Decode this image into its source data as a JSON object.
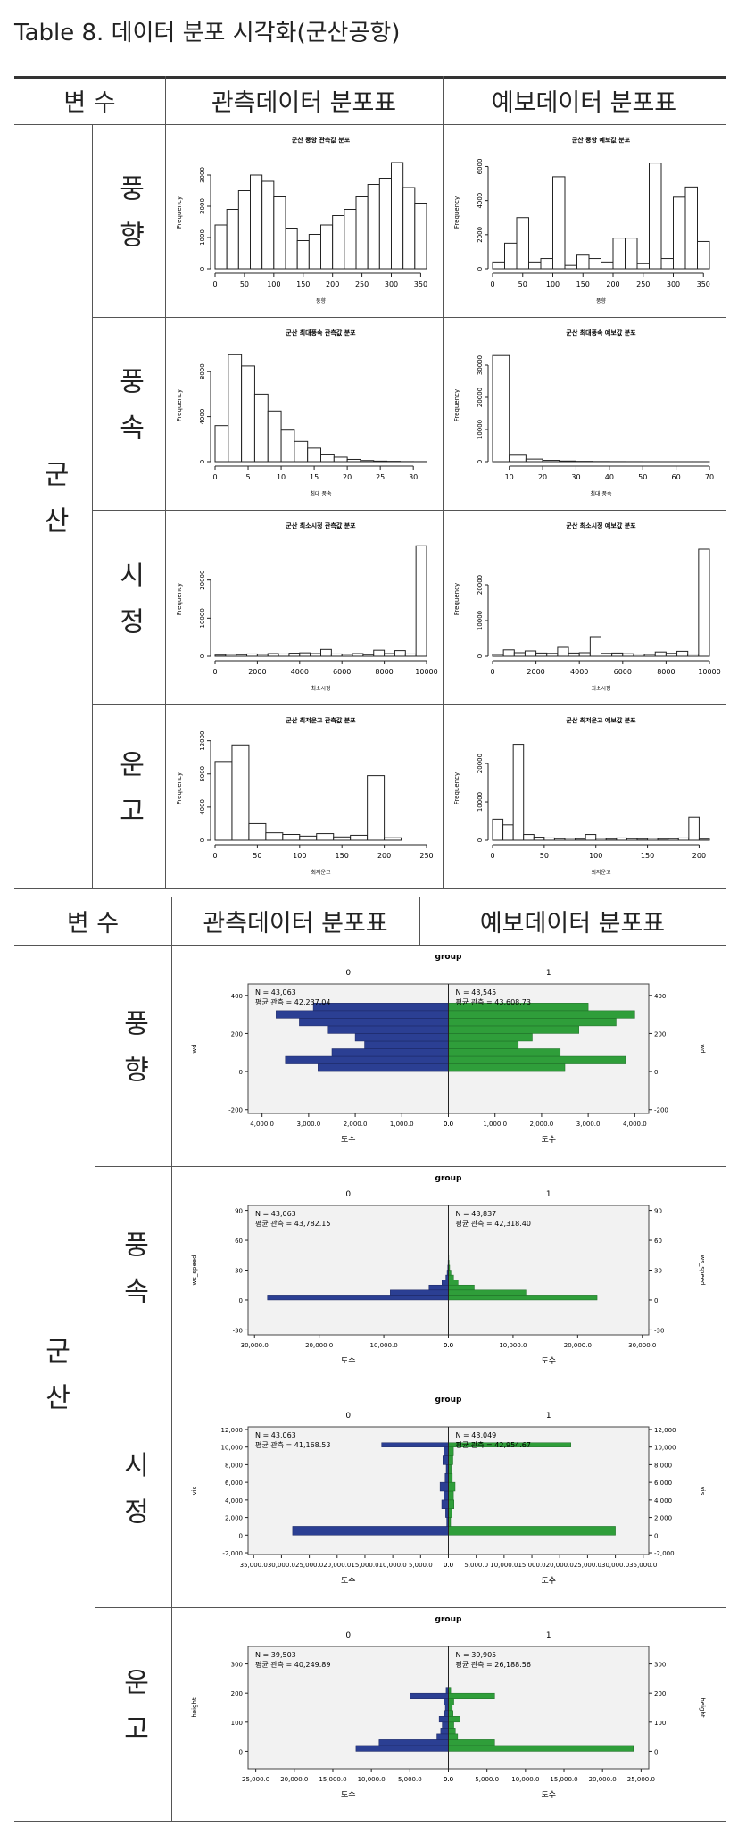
{
  "title": "Table 8. 데이터 분포 시각화(군산공항)",
  "table1": {
    "header": [
      "변 수",
      "관측데이터 분포표",
      "예보데이터 분포표"
    ],
    "group": "군산",
    "rows": [
      {
        "label": "풍향",
        "observed": {
          "type": "histogram",
          "title": "군산 풍향 관측값 분포",
          "xlabel": "풍향",
          "ylabel": "Frequency",
          "bins": [
            0,
            20,
            40,
            60,
            80,
            100,
            120,
            140,
            160,
            180,
            200,
            220,
            240,
            260,
            280,
            300,
            320,
            340,
            360
          ],
          "counts": [
            1400,
            1900,
            2500,
            3000,
            2800,
            2300,
            1300,
            900,
            1100,
            1400,
            1700,
            1900,
            2300,
            2700,
            2900,
            3400,
            2600,
            2100
          ],
          "xlim": [
            0,
            360
          ],
          "ylim": [
            0,
            3600
          ],
          "xticks": [
            0,
            50,
            100,
            150,
            200,
            250,
            300,
            350
          ],
          "yticks": [
            0,
            1000,
            2000,
            3000
          ]
        },
        "forecast": {
          "type": "histogram",
          "title": "군산 풍향 예보값 분포",
          "xlabel": "풍향",
          "ylabel": "Frequency",
          "bins": [
            0,
            20,
            40,
            60,
            80,
            100,
            120,
            140,
            160,
            180,
            200,
            220,
            240,
            260,
            280,
            300,
            320,
            340,
            360
          ],
          "counts": [
            400,
            1500,
            3000,
            400,
            600,
            5400,
            200,
            800,
            600,
            400,
            1800,
            1800,
            300,
            6200,
            600,
            4200,
            4800,
            1600
          ],
          "xlim": [
            0,
            360
          ],
          "ylim": [
            0,
            6600
          ],
          "xticks": [
            0,
            50,
            100,
            150,
            200,
            250,
            300,
            350
          ],
          "yticks": [
            0,
            2000,
            4000,
            6000
          ]
        }
      },
      {
        "label": "풍속",
        "observed": {
          "type": "histogram",
          "title": "군산 최대풍속 관측값 분포",
          "xlabel": "최대 풍속",
          "ylabel": "Frequency",
          "bins": [
            0,
            2,
            4,
            6,
            8,
            10,
            12,
            14,
            16,
            18,
            20,
            22,
            24,
            26,
            28,
            30,
            32
          ],
          "counts": [
            3200,
            9500,
            8500,
            6000,
            4500,
            2800,
            1800,
            1200,
            600,
            400,
            200,
            100,
            50,
            30,
            10,
            5
          ],
          "xlim": [
            0,
            32
          ],
          "ylim": [
            0,
            10000
          ],
          "xticks": [
            0,
            5,
            10,
            15,
            20,
            25,
            30
          ],
          "yticks": [
            0,
            4000,
            8000
          ]
        },
        "forecast": {
          "type": "histogram",
          "title": "군산 최대풍속 예보값 분포",
          "xlabel": "최대 풍속",
          "ylabel": "Frequency",
          "bins": [
            5,
            10,
            15,
            20,
            25,
            30,
            35,
            40,
            45,
            50,
            55,
            60,
            65,
            70
          ],
          "counts": [
            33000,
            2000,
            800,
            400,
            200,
            100,
            50,
            30,
            20,
            10,
            5,
            5,
            5
          ],
          "xlim": [
            5,
            70
          ],
          "ylim": [
            0,
            35000
          ],
          "xticks": [
            10,
            20,
            30,
            40,
            50,
            60,
            70
          ],
          "yticks": [
            0,
            10000,
            20000,
            30000
          ]
        }
      },
      {
        "label": "시정",
        "observed": {
          "type": "histogram",
          "title": "군산 최소시정 관측값 분포",
          "xlabel": "최소시정",
          "ylabel": "Frequency",
          "bins": [
            0,
            500,
            1000,
            1500,
            2000,
            2500,
            3000,
            3500,
            4000,
            4500,
            5000,
            5500,
            6000,
            6500,
            7000,
            7500,
            8000,
            8500,
            9000,
            9500,
            10000
          ],
          "counts": [
            300,
            500,
            400,
            600,
            500,
            700,
            600,
            800,
            900,
            700,
            1800,
            600,
            500,
            700,
            400,
            1600,
            700,
            1500,
            600,
            29000
          ],
          "xlim": [
            0,
            10000
          ],
          "ylim": [
            0,
            30000
          ],
          "xticks": [
            0,
            2000,
            4000,
            6000,
            8000,
            10000
          ],
          "yticks": [
            0,
            10000,
            20000
          ]
        },
        "forecast": {
          "type": "histogram",
          "title": "군산 최소시정 예보값 분포",
          "xlabel": "최소시정",
          "ylabel": "Frequency",
          "bins": [
            0,
            500,
            1000,
            1500,
            2000,
            2500,
            3000,
            3500,
            4000,
            4500,
            5000,
            5500,
            6000,
            6500,
            7000,
            7500,
            8000,
            8500,
            9000,
            9500,
            10000
          ],
          "counts": [
            500,
            1800,
            1000,
            1500,
            900,
            800,
            2500,
            900,
            1000,
            5500,
            800,
            900,
            700,
            600,
            500,
            1200,
            800,
            1400,
            600,
            30000
          ],
          "xlim": [
            0,
            10000
          ],
          "ylim": [
            0,
            32000
          ],
          "xticks": [
            0,
            2000,
            4000,
            6000,
            8000,
            10000
          ],
          "yticks": [
            0,
            10000,
            20000
          ]
        }
      },
      {
        "label": "운고",
        "observed": {
          "type": "histogram",
          "title": "군산 최저운고 관측값 분포",
          "xlabel": "최저운고",
          "ylabel": "Frequency",
          "bins": [
            0,
            20,
            40,
            60,
            80,
            100,
            120,
            140,
            160,
            180,
            200,
            220
          ],
          "counts": [
            9500,
            11500,
            2000,
            900,
            700,
            500,
            800,
            400,
            600,
            7800,
            300
          ],
          "xlim": [
            0,
            250
          ],
          "ylim": [
            0,
            12500
          ],
          "xticks": [
            0,
            50,
            100,
            150,
            200,
            250
          ],
          "yticks": [
            0,
            4000,
            8000,
            12000
          ]
        },
        "forecast": {
          "type": "histogram",
          "title": "군산 최저운고 예보값 분포",
          "xlabel": "최저운고",
          "ylabel": "Frequency",
          "bins": [
            0,
            10,
            20,
            30,
            40,
            50,
            60,
            70,
            80,
            90,
            100,
            110,
            120,
            130,
            140,
            150,
            160,
            170,
            180,
            190,
            200,
            210
          ],
          "counts": [
            5500,
            4000,
            25000,
            1500,
            800,
            600,
            400,
            500,
            300,
            1500,
            500,
            300,
            600,
            400,
            300,
            500,
            300,
            400,
            600,
            6000,
            300
          ],
          "xlim": [
            0,
            210
          ],
          "ylim": [
            0,
            27000
          ],
          "xticks": [
            0,
            50,
            100,
            150,
            200
          ],
          "yticks": [
            0,
            10000,
            20000
          ]
        }
      }
    ]
  },
  "table2": {
    "header": [
      "변 수",
      "관측데이터 분포표",
      "예보데이터 분포표"
    ],
    "group": "군산",
    "rows": [
      {
        "label": "풍향",
        "chart": {
          "type": "pyramid",
          "title": "group",
          "groups": [
            "0",
            "1"
          ],
          "ylabel": "wd",
          "xlabel": "도수",
          "notes_left": [
            "N = 43,063",
            "평균 관측 = 42,237.04"
          ],
          "notes_right": [
            "N = 43,545",
            "평균 관측 = 43,608.73"
          ],
          "ybins": [
            0,
            40,
            80,
            120,
            160,
            200,
            240,
            280,
            320,
            360
          ],
          "left": [
            2800,
            3500,
            2500,
            1800,
            2000,
            2600,
            3200,
            3700,
            2900
          ],
          "right": [
            2500,
            3800,
            2400,
            1500,
            1800,
            2800,
            3600,
            4000,
            3000
          ],
          "ylim": [
            -220,
            460
          ],
          "yticks": [
            -200,
            0,
            200,
            400
          ],
          "xlim": [
            0,
            4300
          ],
          "xticks": [
            {
              "value": 0,
              "label": "0.0"
            },
            {
              "value": 1000,
              "label": "1,000.0"
            },
            {
              "value": 2000,
              "label": "2,000.0"
            },
            {
              "value": 3000,
              "label": "3,000.0"
            },
            {
              "value": 4000,
              "label": "4,000.0"
            }
          ]
        }
      },
      {
        "label": "풍속",
        "chart": {
          "type": "pyramid",
          "title": "group",
          "groups": [
            "0",
            "1"
          ],
          "ylabel": "ws_speed",
          "xlabel": "도수",
          "notes_left": [
            "N = 43,063",
            "평균 관측 = 43,782.15"
          ],
          "notes_right": [
            "N = 43,837",
            "평균 관측 = 42,318.40"
          ],
          "ybins": [
            0,
            5,
            10,
            15,
            20,
            25,
            30,
            35,
            40,
            45,
            50
          ],
          "left": [
            28000,
            9000,
            3000,
            1000,
            400,
            200,
            100,
            50,
            30,
            10
          ],
          "right": [
            23000,
            12000,
            4000,
            1500,
            800,
            400,
            200,
            100,
            50,
            20
          ],
          "ylim": [
            -35,
            95
          ],
          "yticks": [
            -30,
            0,
            30,
            60,
            90
          ],
          "xlim": [
            0,
            31000
          ],
          "xticks": [
            {
              "value": 0,
              "label": "0.0"
            },
            {
              "value": 10000,
              "label": "10,000.0"
            },
            {
              "value": 20000,
              "label": "20,000.0"
            },
            {
              "value": 30000,
              "label": "30,000.0"
            }
          ]
        }
      },
      {
        "label": "시정",
        "chart": {
          "type": "pyramid",
          "title": "group",
          "groups": [
            "0",
            "1"
          ],
          "ylabel": "vis",
          "xlabel": "도수",
          "notes_left": [
            "N = 43,063",
            "평균 관측 = 41,168.53"
          ],
          "notes_right": [
            "N = 43,049",
            "평균 관측 = 42,954.67"
          ],
          "ybins": [
            0,
            1000,
            2000,
            3000,
            4000,
            5000,
            6000,
            7000,
            8000,
            9000,
            10000,
            10500
          ],
          "left": [
            28000,
            300,
            500,
            1200,
            800,
            1500,
            600,
            400,
            1000,
            800,
            12000
          ],
          "right": [
            30000,
            400,
            600,
            1000,
            900,
            1200,
            700,
            500,
            800,
            900,
            22000
          ],
          "ylim": [
            -2200,
            12300
          ],
          "yticks": [
            {
              "value": -2000,
              "label": "-2,000"
            },
            0,
            {
              "value": 2000,
              "label": "2,000"
            },
            {
              "value": 4000,
              "label": "4,000"
            },
            {
              "value": 6000,
              "label": "6,000"
            },
            {
              "value": 8000,
              "label": "8,000"
            },
            {
              "value": 10000,
              "label": "10,000"
            },
            {
              "value": 12000,
              "label": "12,000"
            }
          ],
          "xlim": [
            0,
            36000
          ],
          "xticks": [
            {
              "value": 0,
              "label": "0.0"
            },
            {
              "value": 5000,
              "label": "5,000.0"
            },
            {
              "value": 10000,
              "label": "10,000.0"
            },
            {
              "value": 15000,
              "label": "15,000.0"
            },
            {
              "value": 20000,
              "label": "20,000.0"
            },
            {
              "value": 25000,
              "label": "25,000.0"
            },
            {
              "value": 30000,
              "label": "30,000.0"
            },
            {
              "value": 35000,
              "label": "35,000.0"
            }
          ]
        }
      },
      {
        "label": "운고",
        "chart": {
          "type": "pyramid",
          "title": "group",
          "groups": [
            "0",
            "1"
          ],
          "ylabel": "height",
          "xlabel": "도수",
          "notes_left": [
            "N = 39,503",
            "평균 관측 = 40,249.89"
          ],
          "notes_right": [
            "N = 39,905",
            "평균 관측 = 26,188.56"
          ],
          "ybins": [
            0,
            20,
            40,
            60,
            80,
            100,
            120,
            140,
            160,
            180,
            200,
            220
          ],
          "left": [
            12000,
            9000,
            1500,
            1000,
            800,
            1200,
            500,
            400,
            600,
            5000,
            300
          ],
          "right": [
            24000,
            6000,
            1200,
            900,
            700,
            1500,
            600,
            500,
            700,
            6000,
            300
          ],
          "ylim": [
            -60,
            360
          ],
          "yticks": [
            0,
            100,
            200,
            300
          ],
          "xlim": [
            0,
            26000
          ],
          "xticks": [
            {
              "value": 0,
              "label": "0.0"
            },
            {
              "value": 5000,
              "label": "5,000.0"
            },
            {
              "value": 10000,
              "label": "10,000.0"
            },
            {
              "value": 15000,
              "label": "15,000.0"
            },
            {
              "value": 20000,
              "label": "20,000.0"
            },
            {
              "value": 25000,
              "label": "25,000.0"
            }
          ]
        }
      }
    ]
  }
}
